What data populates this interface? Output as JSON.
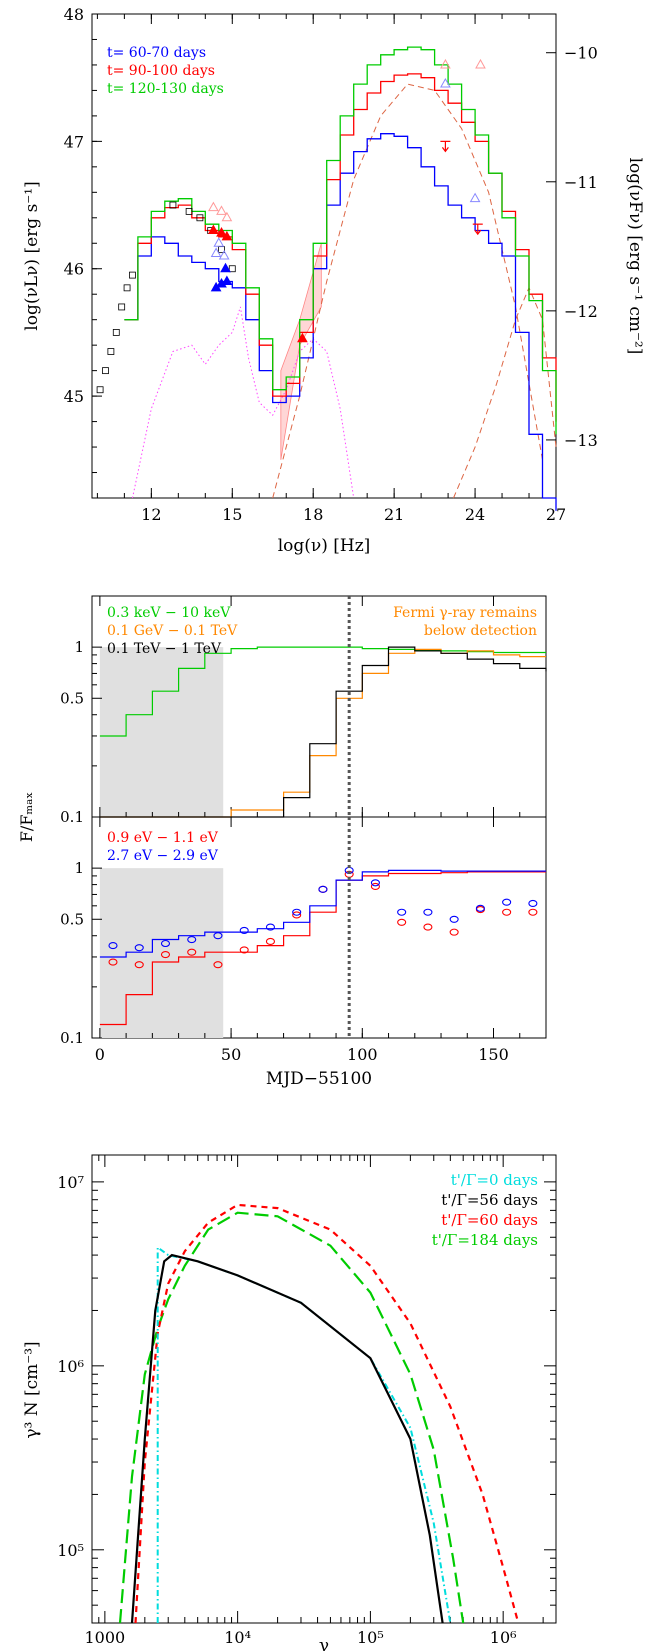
{
  "chart_data": [
    {
      "type": "line",
      "xlabel": "log(ν) [Hz]",
      "ylabel": "log(νLν) [erg s⁻¹]",
      "ylabel_right": "log(νFν) [erg s⁻¹ cm⁻²]",
      "xlim": [
        9.8,
        27
      ],
      "ylim": [
        44.2,
        48
      ],
      "ylim_right": [
        -13.45,
        -9.7
      ],
      "xticks": [
        "12",
        "15",
        "18",
        "21",
        "24",
        "27"
      ],
      "yticks": [
        "45",
        "46",
        "47",
        "48"
      ],
      "yticks_right": [
        "−10",
        "−11",
        "−12",
        "−13"
      ],
      "legend_position": "top-left",
      "series": [
        {
          "name": "t= 60-70 days",
          "color": "#0000ff",
          "x": [
            11,
            11.5,
            12,
            12.5,
            13,
            13.5,
            14,
            14.5,
            15,
            15.5,
            16,
            16.5,
            17,
            17.5,
            18,
            18.5,
            19,
            19.5,
            20,
            20.5,
            21,
            21.5,
            22,
            22.5,
            23,
            23.5,
            24,
            24.5,
            25,
            25.5,
            26,
            26.5,
            27
          ],
          "y": [
            45.6,
            46.1,
            46.25,
            46.2,
            46.1,
            46.05,
            46,
            45.9,
            45.85,
            45.6,
            45.2,
            44.95,
            45.0,
            45.3,
            46.0,
            46.5,
            46.75,
            46.92,
            47.02,
            47.06,
            47.04,
            46.95,
            46.8,
            46.65,
            46.5,
            46.4,
            46.3,
            46.2,
            46.1,
            45.5,
            44.7,
            44.2,
            44.1
          ]
        },
        {
          "name": "t= 90-100 days",
          "color": "#ff0000",
          "x": [
            11,
            11.5,
            12,
            12.5,
            13,
            13.5,
            14,
            14.5,
            15,
            15.5,
            16,
            16.5,
            17,
            17.5,
            18,
            18.5,
            19,
            19.5,
            20,
            20.5,
            21,
            21.5,
            22,
            22.5,
            23,
            23.5,
            24,
            24.5,
            25,
            25.5,
            26,
            26.5,
            27
          ],
          "y": [
            45.6,
            46.2,
            46.4,
            46.48,
            46.5,
            46.4,
            46.3,
            46.25,
            46.15,
            45.8,
            45.4,
            45.0,
            45.1,
            45.5,
            46.1,
            46.7,
            47.05,
            47.25,
            47.38,
            47.47,
            47.52,
            47.53,
            47.5,
            47.4,
            47.3,
            47.15,
            47.0,
            46.75,
            46.45,
            46.15,
            45.8,
            45.3,
            44.8
          ]
        },
        {
          "name": "t= 120-130 days",
          "color": "#00cc00",
          "x": [
            11,
            11.5,
            12,
            12.5,
            13,
            13.5,
            14,
            14.5,
            15,
            15.5,
            16,
            16.5,
            17,
            17.5,
            18,
            18.5,
            19,
            19.5,
            20,
            20.5,
            21,
            21.5,
            22,
            22.5,
            23,
            23.5,
            24,
            24.5,
            25,
            25.5,
            26,
            26.5,
            27
          ],
          "y": [
            45.6,
            46.25,
            46.45,
            46.53,
            46.55,
            46.45,
            46.35,
            46.3,
            46.2,
            45.85,
            45.45,
            45.05,
            45.15,
            45.6,
            46.2,
            46.85,
            47.2,
            47.45,
            47.6,
            47.68,
            47.72,
            47.74,
            47.72,
            47.6,
            47.45,
            47.25,
            47.05,
            46.75,
            46.4,
            46.1,
            45.75,
            45.2,
            44.7
          ]
        }
      ]
    },
    {
      "type": "line",
      "xlabel": "MJD−55100",
      "ylabel": "F/Fₘₐₓ",
      "xlim": [
        -3,
        170
      ],
      "ylim": [
        0.1,
        2
      ],
      "xticks": [
        "0",
        "50",
        "100",
        "150"
      ],
      "yticks": [
        "0.1",
        "0.5",
        "1"
      ],
      "annotation": "Fermi γ-ray remains below detection",
      "vertical_line_x": 95,
      "shaded_x": [
        0,
        47
      ],
      "series": [
        {
          "name": "0.3 keV − 10 keV",
          "color": "#00cc00",
          "x": [
            0,
            10,
            20,
            30,
            40,
            50,
            60,
            70,
            80,
            90,
            100,
            110,
            120,
            130,
            140,
            150,
            160,
            170
          ],
          "y": [
            0.3,
            0.4,
            0.55,
            0.75,
            0.92,
            0.98,
            1.0,
            1.0,
            1.0,
            1.0,
            0.98,
            0.97,
            0.96,
            0.95,
            0.94,
            0.93,
            0.93,
            0.93
          ]
        },
        {
          "name": "0.1 GeV − 0.1 TeV",
          "color": "#ff8800",
          "x": [
            0,
            10,
            20,
            30,
            40,
            50,
            60,
            70,
            80,
            90,
            100,
            110,
            120,
            130,
            140,
            150,
            160,
            170
          ],
          "y": [
            0.1,
            0.1,
            0.1,
            0.1,
            0.1,
            0.11,
            0.11,
            0.14,
            0.23,
            0.5,
            0.7,
            0.92,
            0.97,
            0.92,
            0.95,
            0.9,
            0.88,
            0.88
          ]
        },
        {
          "name": "0.1 TeV − 1 TeV",
          "color": "#000000",
          "x": [
            0,
            10,
            20,
            30,
            40,
            50,
            60,
            70,
            80,
            90,
            100,
            110,
            120,
            130,
            140,
            150,
            160,
            170
          ],
          "y": [
            0.1,
            0.1,
            0.1,
            0.1,
            0.1,
            0.1,
            0.1,
            0.13,
            0.27,
            0.55,
            0.78,
            1.0,
            0.95,
            0.92,
            0.85,
            0.8,
            0.75,
            0.72
          ]
        }
      ]
    },
    {
      "type": "line",
      "xlim": [
        -3,
        170
      ],
      "ylim": [
        0.1,
        2
      ],
      "xticks": [
        "0",
        "50",
        "100",
        "150"
      ],
      "yticks": [
        "0.1",
        "0.5",
        "1"
      ],
      "shaded_x": [
        0,
        47
      ],
      "vertical_line_x": 95,
      "series": [
        {
          "name": "0.9 eV − 1.1 eV",
          "color": "#ff0000",
          "x": [
            0,
            10,
            20,
            30,
            40,
            50,
            60,
            70,
            80,
            90,
            100,
            110,
            120,
            130,
            140,
            150,
            160,
            170
          ],
          "y": [
            0.12,
            0.18,
            0.28,
            0.3,
            0.32,
            0.32,
            0.35,
            0.4,
            0.55,
            0.85,
            0.9,
            0.93,
            0.93,
            0.94,
            0.95,
            0.95,
            0.95,
            0.95
          ],
          "points_x": [
            5,
            15,
            25,
            35,
            45,
            55,
            65,
            75,
            85,
            95,
            105,
            115,
            125,
            135,
            145,
            155,
            165
          ],
          "points_y": [
            0.28,
            0.27,
            0.31,
            0.32,
            0.27,
            0.33,
            0.37,
            0.53,
            0.75,
            0.92,
            0.78,
            0.48,
            0.45,
            0.42,
            0.57,
            0.55,
            0.55
          ]
        },
        {
          "name": "2.7 eV − 2.9 eV",
          "color": "#0000ff",
          "x": [
            0,
            10,
            20,
            30,
            40,
            50,
            60,
            70,
            80,
            90,
            100,
            110,
            120,
            130,
            140,
            150,
            160,
            170
          ],
          "y": [
            0.3,
            0.32,
            0.38,
            0.4,
            0.42,
            0.42,
            0.44,
            0.48,
            0.6,
            0.85,
            0.95,
            0.97,
            0.97,
            0.96,
            0.96,
            0.96,
            0.96,
            0.96
          ],
          "points_x": [
            5,
            15,
            25,
            35,
            45,
            55,
            65,
            75,
            85,
            95,
            105,
            115,
            125,
            135,
            145,
            155,
            165
          ],
          "points_y": [
            0.35,
            0.34,
            0.36,
            0.38,
            0.4,
            0.43,
            0.45,
            0.55,
            0.75,
            0.97,
            0.82,
            0.55,
            0.55,
            0.5,
            0.58,
            0.63,
            0.62
          ]
        }
      ]
    },
    {
      "type": "line",
      "xlabel": "γ",
      "ylabel": "γ³ N [cm⁻³]",
      "log_x": true,
      "log_y": true,
      "xlim": [
        800,
        2500000
      ],
      "ylim": [
        40000,
        14000000
      ],
      "xticks": [
        "1000",
        "10⁴",
        "10⁵",
        "10⁶"
      ],
      "yticks": [
        "10⁵",
        "10⁶",
        "10⁷"
      ],
      "legend_position": "top-right",
      "series": [
        {
          "name": "t'/Γ=0 days",
          "color": "#00dddd",
          "x": [
            2500,
            2500,
            3000,
            5000,
            10000,
            30000,
            100000,
            200000,
            300000,
            400000
          ],
          "y": [
            40000,
            4400000,
            4000000,
            3700000,
            3100000,
            2200000,
            1100000,
            460000,
            140000,
            40000
          ]
        },
        {
          "name": "t'/Γ=56 days",
          "color": "#000000",
          "x": [
            1600,
            2000,
            2400,
            2800,
            3200,
            5000,
            10000,
            30000,
            100000,
            200000,
            280000,
            350000
          ],
          "y": [
            40000,
            400000,
            2000000,
            3700000,
            4000000,
            3700000,
            3100000,
            2200000,
            1100000,
            400000,
            120000,
            40000
          ]
        },
        {
          "name": "t'/Γ=60 days",
          "color": "#ff0000",
          "x": [
            1700,
            2000,
            2500,
            3000,
            4000,
            6000,
            10000,
            20000,
            50000,
            100000,
            200000,
            400000,
            700000,
            1000000,
            1300000
          ],
          "y": [
            40000,
            300000,
            1500000,
            2800000,
            4200000,
            6000000,
            7500000,
            7200000,
            5500000,
            3500000,
            1700000,
            600000,
            200000,
            80000,
            40000
          ]
        },
        {
          "name": "t'/Γ=184 days",
          "color": "#00cc00",
          "x": [
            1300,
            1600,
            2000,
            2500,
            3000,
            4000,
            6000,
            10000,
            20000,
            50000,
            100000,
            200000,
            300000,
            420000,
            500000
          ],
          "y": [
            40000,
            250000,
            900000,
            1600000,
            2300000,
            3500000,
            5500000,
            6800000,
            6500000,
            4500000,
            2500000,
            900000,
            350000,
            90000,
            40000
          ]
        }
      ]
    }
  ]
}
